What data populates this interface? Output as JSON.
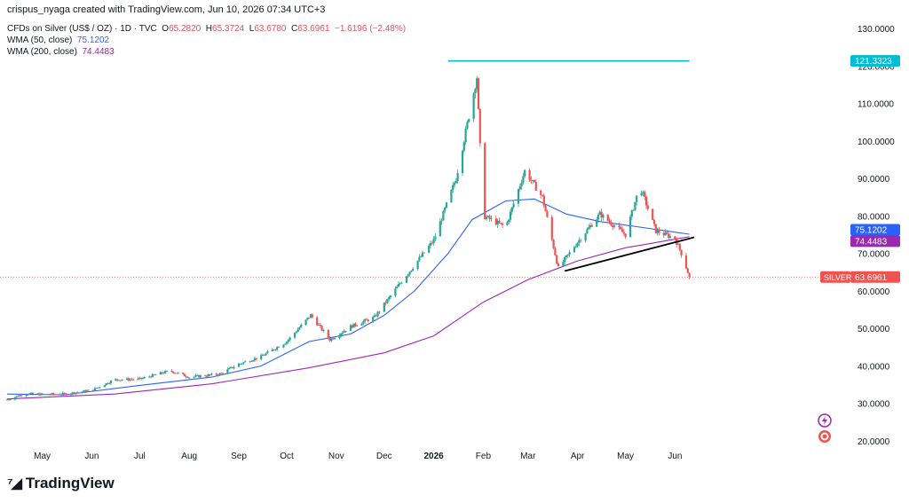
{
  "header": {
    "credit": "crispus_nyaga created with TradingView.com, Jun 10, 2026 07:34 UTC+3"
  },
  "legend": {
    "symbol": "CFDs on Silver (US$ / OZ) · 1D · TVC",
    "open_label": "O",
    "open": "65.2820",
    "high_label": "H",
    "high": "65.3724",
    "low_label": "L",
    "low": "63.6780",
    "close_label": "C",
    "close": "63.6961",
    "change": "−1.6196 (−2.48%)",
    "wma50_label": "WMA (50, close)",
    "wma50_value": "75.1202",
    "wma200_label": "WMA (200, close)",
    "wma200_value": "74.4483"
  },
  "footer": {
    "logo_text": "TradingView"
  },
  "colors": {
    "up": "#26a69a",
    "down": "#ef5350",
    "wma50": "#2962ff",
    "wma200": "#9c27b0",
    "resistance": "#00bcd4",
    "trendline": "#000000",
    "price_line": "#ef5350"
  },
  "chart_data": {
    "type": "candlestick",
    "title": "CFDs on Silver (US$ / OZ)",
    "x_ticks": [
      "May",
      "Jun",
      "Jul",
      "Aug",
      "Sep",
      "Oct",
      "Nov",
      "Dec",
      "2026",
      "Feb",
      "Mar",
      "Apr",
      "May",
      "Jun"
    ],
    "y_ticks": [
      "20.0000",
      "30.0000",
      "40.0000",
      "50.0000",
      "60.0000",
      "70.0000",
      "80.0000",
      "90.0000",
      "100.0000",
      "110.0000",
      "120.0000",
      "130.0000"
    ],
    "ylim": [
      17,
      133
    ],
    "price_series": [
      {
        "date": "2025-04-09",
        "price": 31.0
      },
      {
        "date": "2025-04-20",
        "price": 32.6
      },
      {
        "date": "2025-05-01",
        "price": 32.4
      },
      {
        "date": "2025-05-15",
        "price": 32.5
      },
      {
        "date": "2025-06-01",
        "price": 33.5
      },
      {
        "date": "2025-06-15",
        "price": 36.3
      },
      {
        "date": "2025-07-01",
        "price": 36.5
      },
      {
        "date": "2025-07-20",
        "price": 38.7
      },
      {
        "date": "2025-08-01",
        "price": 37.0
      },
      {
        "date": "2025-08-20",
        "price": 37.8
      },
      {
        "date": "2025-09-01",
        "price": 40.5
      },
      {
        "date": "2025-09-15",
        "price": 42.5
      },
      {
        "date": "2025-10-01",
        "price": 46.5
      },
      {
        "date": "2025-10-16",
        "price": 53.5
      },
      {
        "date": "2025-10-28",
        "price": 47.0
      },
      {
        "date": "2025-11-10",
        "price": 50.5
      },
      {
        "date": "2025-11-25",
        "price": 53.0
      },
      {
        "date": "2025-12-10",
        "price": 61.5
      },
      {
        "date": "2026-01-01",
        "price": 73.5
      },
      {
        "date": "2026-01-15",
        "price": 90.0
      },
      {
        "date": "2026-01-28",
        "price": 117.0
      },
      {
        "date": "2026-02-01",
        "price": 80.0
      },
      {
        "date": "2026-02-15",
        "price": 77.0
      },
      {
        "date": "2026-02-27",
        "price": 92.0
      },
      {
        "date": "2026-03-10",
        "price": 85.0
      },
      {
        "date": "2026-03-20",
        "price": 66.0
      },
      {
        "date": "2026-04-01",
        "price": 73.0
      },
      {
        "date": "2026-04-15",
        "price": 80.5
      },
      {
        "date": "2026-05-01",
        "price": 75.0
      },
      {
        "date": "2026-05-10",
        "price": 88.0
      },
      {
        "date": "2026-05-20",
        "price": 76.0
      },
      {
        "date": "2026-06-01",
        "price": 74.0
      },
      {
        "date": "2026-06-06",
        "price": 69.0
      },
      {
        "date": "2026-06-10",
        "price": 63.6961
      }
    ],
    "wma50": [
      {
        "date": "2025-04-09",
        "value": 32.5
      },
      {
        "date": "2025-05-15",
        "value": 32.3
      },
      {
        "date": "2025-07-01",
        "value": 34.8
      },
      {
        "date": "2025-08-15",
        "value": 37.0
      },
      {
        "date": "2025-09-15",
        "value": 40.0
      },
      {
        "date": "2025-10-15",
        "value": 46.5
      },
      {
        "date": "2025-11-10",
        "value": 48.5
      },
      {
        "date": "2025-12-01",
        "value": 53.5
      },
      {
        "date": "2025-12-20",
        "value": 60.0
      },
      {
        "date": "2026-01-10",
        "value": 70.0
      },
      {
        "date": "2026-01-25",
        "value": 79.0
      },
      {
        "date": "2026-02-15",
        "value": 84.0
      },
      {
        "date": "2026-03-05",
        "value": 84.5
      },
      {
        "date": "2026-03-25",
        "value": 80.5
      },
      {
        "date": "2026-04-15",
        "value": 78.5
      },
      {
        "date": "2026-05-10",
        "value": 77.0
      },
      {
        "date": "2026-06-10",
        "value": 75.1202
      }
    ],
    "wma200": [
      {
        "date": "2025-04-09",
        "value": 31.2
      },
      {
        "date": "2025-06-15",
        "value": 32.5
      },
      {
        "date": "2025-08-15",
        "value": 35.2
      },
      {
        "date": "2025-10-15",
        "value": 39.5
      },
      {
        "date": "2025-12-01",
        "value": 43.5
      },
      {
        "date": "2026-01-01",
        "value": 48.0
      },
      {
        "date": "2026-02-01",
        "value": 57.0
      },
      {
        "date": "2026-03-01",
        "value": 63.0
      },
      {
        "date": "2026-04-01",
        "value": 68.0
      },
      {
        "date": "2026-05-01",
        "value": 71.5
      },
      {
        "date": "2026-06-10",
        "value": 74.4483
      }
    ],
    "lines": [
      {
        "name": "resistance",
        "from": {
          "date": "2026-01-10",
          "price": 121.3323
        },
        "to": {
          "date": "2026-06-10",
          "price": 121.3323
        }
      },
      {
        "name": "trendline",
        "from": {
          "date": "2026-03-24",
          "price": 65.3
        },
        "to": {
          "date": "2026-06-13",
          "price": 74.3
        }
      }
    ],
    "price_labels": [
      {
        "name": "resistance-label",
        "text": "121.3323",
        "value": 121.3323,
        "color": "#00bcd4"
      },
      {
        "name": "wma50-label",
        "text": "75.1202",
        "value": 75.1202,
        "color": "#2962ff"
      },
      {
        "name": "wma200-label",
        "text": "74.4483",
        "value": 74.4483,
        "color": "#9c27b0"
      },
      {
        "name": "last-price-label",
        "text": "63.6961",
        "value": 63.6961,
        "color": "#ef5350",
        "tag": "SILVER"
      }
    ],
    "grid": false,
    "legend_position": "top-left"
  }
}
